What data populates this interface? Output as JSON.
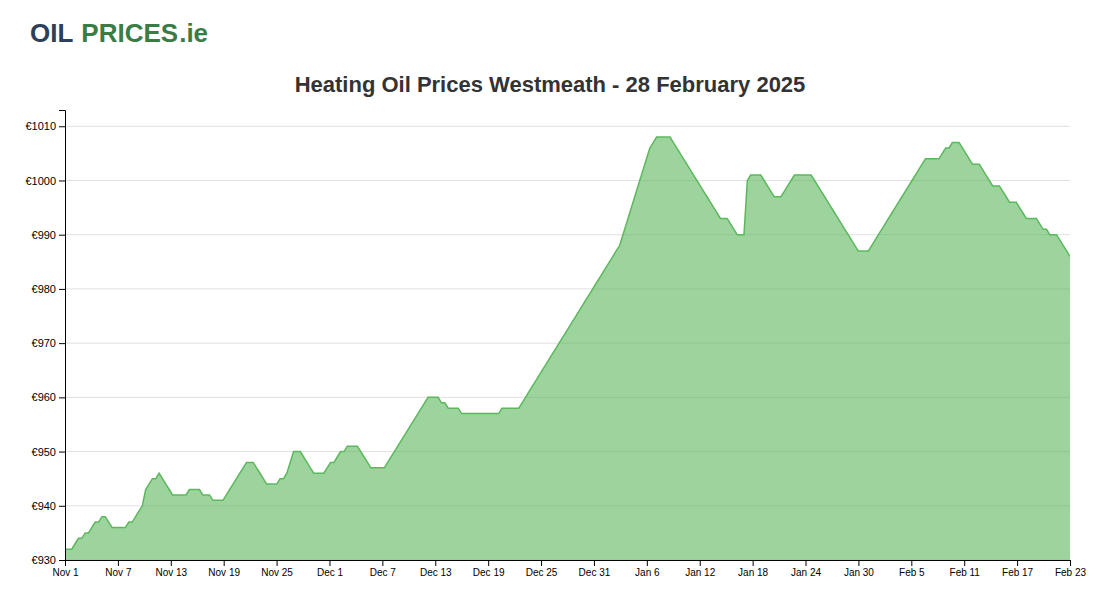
{
  "chart_data": {
    "type": "area",
    "title": "Heating Oil Prices Westmeath - 28 February 2025",
    "annotations": [
      {
        "text": "OIL",
        "color": "#2d4059"
      },
      {
        "text": "PRICES",
        "color": "#3a7d44"
      },
      {
        "text": ".ie",
        "color": "#3a7d44"
      }
    ],
    "color": "#5cb85c",
    "grid": true,
    "xlim": [
      0,
      19
    ],
    "xticks": [
      {
        "value": 0,
        "label": "Nov 1"
      },
      {
        "value": 1,
        "label": "Nov 7"
      },
      {
        "value": 2,
        "label": "Nov 13"
      },
      {
        "value": 3,
        "label": "Nov 19"
      },
      {
        "value": 4,
        "label": "Nov 25"
      },
      {
        "value": 5,
        "label": "Dec 1"
      },
      {
        "value": 6,
        "label": "Dec 7"
      },
      {
        "value": 7,
        "label": "Dec 13"
      },
      {
        "value": 8,
        "label": "Dec 19"
      },
      {
        "value": 9,
        "label": "Dec 25"
      },
      {
        "value": 10,
        "label": "Dec 31"
      },
      {
        "value": 11,
        "label": "Jan 6"
      },
      {
        "value": 12,
        "label": "Jan 12"
      },
      {
        "value": 13,
        "label": "Jan 18"
      },
      {
        "value": 14,
        "label": "Jan 24"
      },
      {
        "value": 15,
        "label": "Jan 30"
      },
      {
        "value": 16,
        "label": "Feb 5"
      },
      {
        "value": 17,
        "label": "Feb 11"
      },
      {
        "value": 18,
        "label": "Feb 17"
      },
      {
        "value": 19,
        "label": "Feb 23"
      }
    ],
    "ylim": [
      930,
      1013
    ],
    "yticks": [
      {
        "value": 930,
        "label": "€930"
      },
      {
        "value": 940,
        "label": "€940"
      },
      {
        "value": 950,
        "label": "€950"
      },
      {
        "value": 960,
        "label": "€960"
      },
      {
        "value": 970,
        "label": "€970"
      },
      {
        "value": 980,
        "label": "€980"
      },
      {
        "value": 990,
        "label": "€990"
      },
      {
        "value": 1000,
        "label": "€1000"
      },
      {
        "value": 1010,
        "label": "€1010"
      }
    ],
    "values": [
      932,
      932,
      932,
      933,
      934,
      934,
      935,
      935,
      936,
      937,
      937,
      938,
      938,
      937,
      936,
      936,
      936,
      936,
      936,
      937,
      937,
      938,
      939,
      940,
      943,
      944,
      945,
      945,
      946,
      945,
      944,
      943,
      942,
      942,
      942,
      942,
      942,
      943,
      943,
      943,
      943,
      942,
      942,
      942,
      941,
      941,
      941,
      941,
      942,
      943,
      944,
      945,
      946,
      947,
      948,
      948,
      948,
      947,
      946,
      945,
      944,
      944,
      944,
      944,
      945,
      945,
      946,
      948,
      950,
      950,
      950,
      949,
      948,
      947,
      946,
      946,
      946,
      946,
      947,
      948,
      948,
      949,
      950,
      950,
      951,
      951,
      951,
      951,
      950,
      949,
      948,
      947,
      947,
      947,
      947,
      947,
      948,
      949,
      950,
      951,
      952,
      953,
      954,
      955,
      956,
      957,
      958,
      959,
      960,
      960,
      960,
      960,
      959,
      959,
      958,
      958,
      958,
      958,
      957,
      957,
      957,
      957,
      957,
      957,
      957,
      957,
      957,
      957,
      957,
      957,
      958,
      958,
      958,
      958,
      958,
      958,
      959,
      960,
      961,
      962,
      963,
      964,
      965,
      966,
      967,
      968,
      969,
      970,
      971,
      972,
      973,
      974,
      975,
      976,
      977,
      978,
      979,
      980,
      981,
      982,
      983,
      984,
      985,
      986,
      987,
      988,
      990,
      992,
      994,
      996,
      998,
      1000,
      1002,
      1004,
      1006,
      1007,
      1008,
      1008,
      1008,
      1008,
      1008,
      1007,
      1006,
      1005,
      1004,
      1003,
      1002,
      1001,
      1000,
      999,
      998,
      997,
      996,
      995,
      994,
      993,
      993,
      993,
      992,
      991,
      990,
      990,
      990,
      1000,
      1001,
      1001,
      1001,
      1001,
      1000,
      999,
      998,
      997,
      997,
      997,
      998,
      999,
      1000,
      1001,
      1001,
      1001,
      1001,
      1001,
      1001,
      1000,
      999,
      998,
      997,
      996,
      995,
      994,
      993,
      992,
      991,
      990,
      989,
      988,
      987,
      987,
      987,
      987,
      988,
      989,
      990,
      991,
      992,
      993,
      994,
      995,
      996,
      997,
      998,
      999,
      1000,
      1001,
      1002,
      1003,
      1004,
      1004,
      1004,
      1004,
      1004,
      1005,
      1006,
      1006,
      1007,
      1007,
      1007,
      1006,
      1005,
      1004,
      1003,
      1003,
      1003,
      1002,
      1001,
      1000,
      999,
      999,
      999,
      998,
      997,
      996,
      996,
      996,
      995,
      994,
      993,
      993,
      993,
      993,
      992,
      991,
      991,
      990,
      990,
      990,
      989,
      988,
      987,
      986
    ]
  }
}
